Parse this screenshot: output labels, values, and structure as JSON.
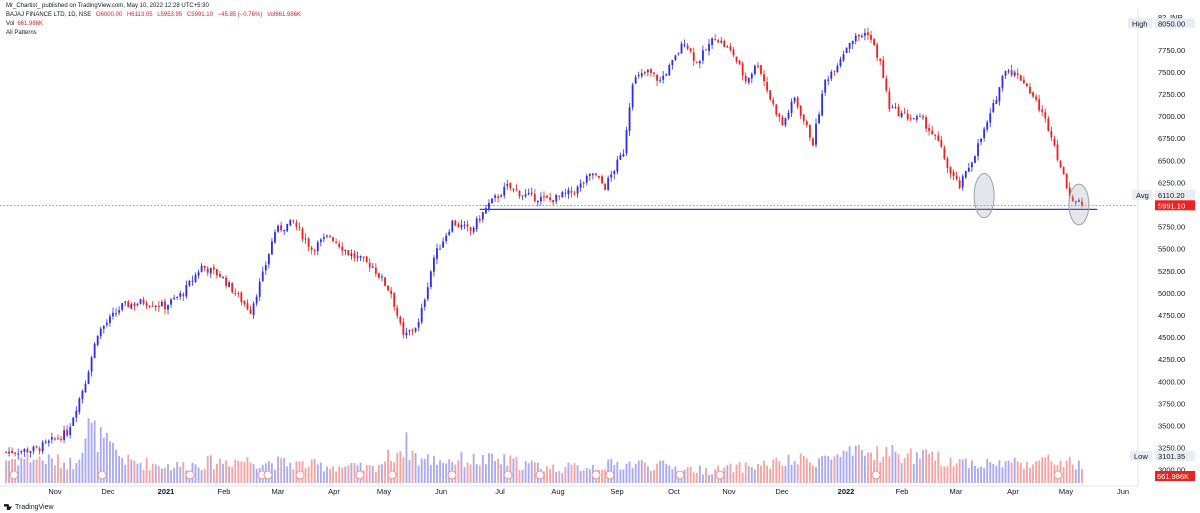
{
  "header": {
    "published": "Mr_Chartist_ published on TradingView.com, May 10, 2022 12:28 UTC+5:30",
    "symbol": "BAJAJ FINANCE LTD, 1D, NSE",
    "open": "O6000.00",
    "high": "H6113.05",
    "low": "L5953.95",
    "close": "C5991.10",
    "change": "−45.85 (−0.76%)",
    "volume_inline": "Vol661.986K",
    "vol_label": "Vol",
    "vol_value": "661.986K",
    "patterns": "All Patterns"
  },
  "brand": {
    "name": "TradingView"
  },
  "colors": {
    "up": "#2d2ee6",
    "down": "#ee2020",
    "support_line": "#3a3ac8",
    "ellipse": "#9aa0b0"
  },
  "chart_data": {
    "type": "candlestick",
    "title": "",
    "currency": "INR",
    "price_axis": {
      "range": [
        2850,
        8200
      ],
      "ticks": [
        3000,
        3250,
        3500,
        3750,
        4000,
        4250,
        4500,
        4750,
        5000,
        5250,
        5500,
        5750,
        6000,
        6250,
        6500,
        6750,
        7000,
        7250,
        7500,
        7750,
        8050
      ],
      "tick_labels": [
        "3000.00",
        "3250.00",
        "3500.00",
        "3750.00",
        "4000.00",
        "4250.00",
        "4500.00",
        "4750.00",
        "5000.00",
        "5250.00",
        "5500.00",
        "5750.00",
        "6000.00",
        "6250.00",
        "6500.00",
        "6750.00",
        "7000.00",
        "7250.00",
        "7500.00",
        "7750.00",
        "8050.00"
      ],
      "top_label": "82"
    },
    "time_axis": {
      "labels": [
        "Nov",
        "Dec",
        "2021",
        "Feb",
        "Mar",
        "Apr",
        "May",
        "Jun",
        "Jul",
        "Aug",
        "Sep",
        "Oct",
        "Nov",
        "Dec",
        "2022",
        "Feb",
        "Mar",
        "Apr",
        "May",
        "Jun"
      ],
      "bold": [
        "2021",
        "2022"
      ]
    },
    "price_path": [
      [
        0,
        3200
      ],
      [
        10,
        3230
      ],
      [
        20,
        3420
      ],
      [
        26,
        4000
      ],
      [
        30,
        4550
      ],
      [
        38,
        4850
      ],
      [
        45,
        4900
      ],
      [
        52,
        4850
      ],
      [
        58,
        5000
      ],
      [
        64,
        5300
      ],
      [
        70,
        5200
      ],
      [
        75,
        5000
      ],
      [
        80,
        4800
      ],
      [
        84,
        5200
      ],
      [
        88,
        5700
      ],
      [
        94,
        5800
      ],
      [
        100,
        5500
      ],
      [
        106,
        5650
      ],
      [
        112,
        5450
      ],
      [
        120,
        5300
      ],
      [
        126,
        5000
      ],
      [
        130,
        4500
      ],
      [
        135,
        4650
      ],
      [
        140,
        5400
      ],
      [
        146,
        5800
      ],
      [
        152,
        5700
      ],
      [
        158,
        6000
      ],
      [
        164,
        6200
      ],
      [
        170,
        6100
      ],
      [
        178,
        6050
      ],
      [
        186,
        6150
      ],
      [
        192,
        6350
      ],
      [
        196,
        6200
      ],
      [
        202,
        6600
      ],
      [
        205,
        7400
      ],
      [
        210,
        7500
      ],
      [
        214,
        7400
      ],
      [
        218,
        7600
      ],
      [
        222,
        7850
      ],
      [
        226,
        7600
      ],
      [
        232,
        7900
      ],
      [
        238,
        7700
      ],
      [
        242,
        7400
      ],
      [
        246,
        7600
      ],
      [
        250,
        7200
      ],
      [
        254,
        6900
      ],
      [
        258,
        7200
      ],
      [
        264,
        6700
      ],
      [
        268,
        7400
      ],
      [
        272,
        7600
      ],
      [
        276,
        7850
      ],
      [
        282,
        7950
      ],
      [
        286,
        7600
      ],
      [
        289,
        7100
      ],
      [
        294,
        7000
      ],
      [
        300,
        6950
      ],
      [
        305,
        6700
      ],
      [
        309,
        6350
      ],
      [
        312,
        6200
      ],
      [
        316,
        6500
      ],
      [
        322,
        7000
      ],
      [
        327,
        7550
      ],
      [
        333,
        7400
      ],
      [
        338,
        7100
      ],
      [
        342,
        6800
      ],
      [
        346,
        6300
      ],
      [
        349,
        6050
      ],
      [
        352,
        5991
      ]
    ],
    "candle_count": 353,
    "volume_ticks": [
      [
        0,
        0.42
      ],
      [
        8,
        0.45
      ],
      [
        22,
        0.35
      ],
      [
        27,
        0.98
      ],
      [
        34,
        0.62
      ],
      [
        40,
        0.38
      ],
      [
        55,
        0.3
      ],
      [
        75,
        0.41
      ],
      [
        100,
        0.32
      ],
      [
        120,
        0.26
      ],
      [
        131,
        0.68
      ],
      [
        135,
        0.42
      ],
      [
        162,
        0.4
      ],
      [
        180,
        0.26
      ],
      [
        206,
        0.35
      ],
      [
        230,
        0.22
      ],
      [
        286,
        0.55
      ],
      [
        320,
        0.34
      ],
      [
        345,
        0.4
      ],
      [
        352,
        0.3
      ]
    ],
    "current_price": 5991.1,
    "current_price_label": "5991.10",
    "avg_price": 6110.2,
    "avg_label": "Avg",
    "avg_value_label": "6110.20",
    "high_label": "High",
    "high_value": 8050,
    "high_value_label": "8050.00",
    "low_label": "Low",
    "low_value": 3101.35,
    "low_value_label": "3101.35",
    "volume_tag": "661.986K",
    "support_level": 5945,
    "support_from": 155,
    "support_to": 357,
    "ellipses": [
      {
        "candle": 320,
        "center": 6100,
        "half_height": 250
      },
      {
        "candle": 351,
        "center": 6000,
        "half_height": 230
      }
    ]
  }
}
